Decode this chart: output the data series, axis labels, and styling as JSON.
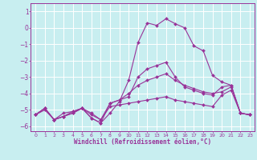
{
  "title": "",
  "xlabel": "Windchill (Refroidissement éolien,°C)",
  "ylabel": "",
  "background_color": "#c8eef0",
  "line_color": "#993399",
  "grid_color": "#ffffff",
  "xlim": [
    -0.5,
    23.5
  ],
  "ylim": [
    -6.3,
    1.5
  ],
  "yticks": [
    1,
    0,
    -1,
    -2,
    -3,
    -4,
    -5,
    -6
  ],
  "xticks": [
    0,
    1,
    2,
    3,
    4,
    5,
    6,
    7,
    8,
    9,
    10,
    11,
    12,
    13,
    14,
    15,
    16,
    17,
    18,
    19,
    20,
    21,
    22,
    23
  ],
  "series": [
    {
      "x": [
        0,
        1,
        2,
        3,
        4,
        5,
        6,
        7,
        8,
        9,
        10,
        11,
        12,
        13,
        14,
        15,
        16,
        17,
        18,
        19,
        20,
        21,
        22,
        23
      ],
      "y": [
        -5.3,
        -4.9,
        -5.6,
        -5.2,
        -5.1,
        -4.9,
        -5.2,
        -5.6,
        -4.8,
        -4.7,
        -4.6,
        -4.5,
        -4.4,
        -4.3,
        -4.2,
        -4.4,
        -4.5,
        -4.6,
        -4.7,
        -4.8,
        -4.1,
        -3.8,
        -5.2,
        -5.3
      ]
    },
    {
      "x": [
        0,
        1,
        2,
        3,
        4,
        5,
        6,
        7,
        8,
        9,
        10,
        11,
        12,
        13,
        14,
        15,
        16,
        17,
        18,
        19,
        20,
        21,
        22,
        23
      ],
      "y": [
        -5.3,
        -4.9,
        -5.6,
        -5.4,
        -5.2,
        -4.9,
        -5.5,
        -5.8,
        -5.2,
        -4.5,
        -3.2,
        -0.9,
        0.3,
        0.15,
        0.55,
        0.25,
        -0.0,
        -1.1,
        -1.4,
        -2.9,
        -3.3,
        -3.5,
        -5.2,
        -5.3
      ]
    },
    {
      "x": [
        0,
        1,
        2,
        3,
        4,
        5,
        6,
        7,
        8,
        9,
        10,
        11,
        12,
        13,
        14,
        15,
        16,
        17,
        18,
        19,
        20,
        21,
        22,
        23
      ],
      "y": [
        -5.3,
        -5.0,
        -5.6,
        -5.4,
        -5.2,
        -4.9,
        -5.5,
        -5.8,
        -4.6,
        -4.4,
        -4.2,
        -3.0,
        -2.5,
        -2.3,
        -2.1,
        -3.0,
        -3.6,
        -3.8,
        -4.0,
        -4.1,
        -3.6,
        -3.5,
        -5.2,
        -5.3
      ]
    },
    {
      "x": [
        0,
        1,
        2,
        3,
        4,
        5,
        6,
        7,
        8,
        9,
        10,
        11,
        12,
        13,
        14,
        15,
        16,
        17,
        18,
        19,
        20,
        21,
        22,
        23
      ],
      "y": [
        -5.3,
        -4.9,
        -5.6,
        -5.4,
        -5.1,
        -4.9,
        -5.3,
        -5.6,
        -4.6,
        -4.4,
        -4.0,
        -3.5,
        -3.2,
        -3.0,
        -2.8,
        -3.2,
        -3.5,
        -3.7,
        -3.9,
        -4.0,
        -3.9,
        -3.6,
        -5.2,
        -5.3
      ]
    }
  ]
}
